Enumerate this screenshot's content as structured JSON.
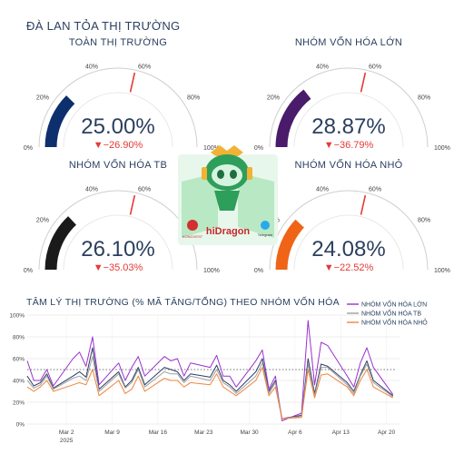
{
  "page": {
    "title": "ĐÀ LAN TỎA THỊ TRƯỜNG",
    "sentiment_title": "TÂM LÝ THỊ TRƯỜNG (% MÃ TĂNG/TỔNG) THEO NHÓM VỐN HÓA"
  },
  "gauges": [
    {
      "name": "TOÀN THỊ TRƯỜNG",
      "value": 25.0,
      "value_text": "25.00%",
      "delta_text": "▼−26.90%",
      "color": "#0d2f6e"
    },
    {
      "name": "NHÓM VỐN HÓA LỚN",
      "value": 28.87,
      "value_text": "28.87%",
      "delta_text": "▼−36.79%",
      "color": "#4a1a6b"
    },
    {
      "name": "NHÓM VỐN HÓA TB",
      "value": 26.1,
      "value_text": "26.10%",
      "delta_text": "▼−35.03%",
      "color": "#1a1a1a"
    },
    {
      "name": "NHÓM VỐN HÓA NHỎ",
      "value": 24.08,
      "value_text": "24.08%",
      "delta_text": "▼−22.52%",
      "color": "#f06418"
    }
  ],
  "gauge_ticks": [
    "0%",
    "20%",
    "40%",
    "60%",
    "80%",
    "100%"
  ],
  "gauge_threshold": 0.57,
  "delta_color": "#e53935",
  "logo": {
    "brand": "hiDragon",
    "partner": "KONGVEST",
    "channel": "Telegram"
  },
  "chart_data": {
    "type": "line",
    "title": "TÂM LÝ THỊ TRƯỜNG (% MÃ TĂNG/TỔNG) THEO NHÓM VỐN HÓA",
    "xlabel": "",
    "ylabel": "",
    "ylim": [
      0,
      100
    ],
    "y_ticks": [
      "0%",
      "20%",
      "40%",
      "60%",
      "80%",
      "100%"
    ],
    "x_ticks": [
      {
        "date": "2025-03-02",
        "label": "Mar 2",
        "sub": "2025"
      },
      {
        "date": "2025-03-09",
        "label": "Mar 9",
        "sub": ""
      },
      {
        "date": "2025-03-16",
        "label": "Mar 16",
        "sub": ""
      },
      {
        "date": "2025-03-23",
        "label": "Mar 23",
        "sub": ""
      },
      {
        "date": "2025-03-30",
        "label": "Mar 30",
        "sub": ""
      },
      {
        "date": "2025-04-06",
        "label": "Apr 6",
        "sub": ""
      },
      {
        "date": "2025-04-13",
        "label": "Apr 13",
        "sub": ""
      },
      {
        "date": "2025-04-20",
        "label": "Apr 20",
        "sub": ""
      }
    ],
    "x_range": [
      "2025-02-24",
      "2025-04-22"
    ],
    "reference_line": 50,
    "grid": true,
    "legend": "top-right",
    "x": [
      "2025-02-24",
      "2025-02-25",
      "2025-02-26",
      "2025-02-27",
      "2025-02-28",
      "2025-03-03",
      "2025-03-04",
      "2025-03-05",
      "2025-03-06",
      "2025-03-07",
      "2025-03-10",
      "2025-03-11",
      "2025-03-12",
      "2025-03-13",
      "2025-03-14",
      "2025-03-17",
      "2025-03-18",
      "2025-03-19",
      "2025-03-20",
      "2025-03-21",
      "2025-03-24",
      "2025-03-25",
      "2025-03-26",
      "2025-03-27",
      "2025-03-28",
      "2025-03-31",
      "2025-04-01",
      "2025-04-02",
      "2025-04-03",
      "2025-04-04",
      "2025-04-07",
      "2025-04-08",
      "2025-04-09",
      "2025-04-10",
      "2025-04-11",
      "2025-04-14",
      "2025-04-15",
      "2025-04-16",
      "2025-04-17",
      "2025-04-18",
      "2025-04-21"
    ],
    "series": [
      {
        "name": "TOÀN THỊ TRƯỜNG",
        "color": "#2c3e66",
        "values": [
          44,
          35,
          38,
          46,
          33,
          44,
          48,
          43,
          70,
          32,
          48,
          34,
          40,
          52,
          36,
          52,
          50,
          48,
          40,
          46,
          43,
          54,
          40,
          36,
          30,
          48,
          60,
          30,
          40,
          5,
          8,
          60,
          28,
          55,
          53,
          38,
          30,
          45,
          58,
          40,
          26
        ]
      },
      {
        "name": "NHÓM VỐN HÓA LỚN",
        "color": "#9b30d0",
        "values": [
          58,
          40,
          40,
          50,
          35,
          60,
          66,
          53,
          80,
          36,
          56,
          40,
          52,
          62,
          44,
          62,
          58,
          60,
          44,
          56,
          52,
          63,
          44,
          44,
          34,
          58,
          68,
          32,
          44,
          3,
          10,
          95,
          36,
          75,
          72,
          44,
          34,
          56,
          70,
          52,
          27
        ]
      },
      {
        "name": "NHÓM VỐN HÓA TB",
        "color": "#a0a0a0",
        "values": [
          40,
          33,
          36,
          44,
          32,
          42,
          44,
          40,
          62,
          30,
          46,
          33,
          38,
          50,
          34,
          48,
          46,
          46,
          38,
          44,
          40,
          50,
          38,
          34,
          28,
          44,
          56,
          28,
          38,
          5,
          7,
          55,
          26,
          52,
          52,
          36,
          28,
          44,
          55,
          38,
          25
        ]
      },
      {
        "name": "NHÓM VỐN HÓA NHỎ",
        "color": "#f0843c",
        "values": [
          34,
          30,
          34,
          40,
          30,
          36,
          38,
          36,
          50,
          26,
          40,
          28,
          32,
          44,
          30,
          42,
          40,
          40,
          34,
          38,
          36,
          46,
          34,
          30,
          26,
          40,
          52,
          26,
          34,
          5,
          6,
          50,
          24,
          45,
          46,
          34,
          26,
          40,
          50,
          34,
          24
        ]
      }
    ]
  }
}
